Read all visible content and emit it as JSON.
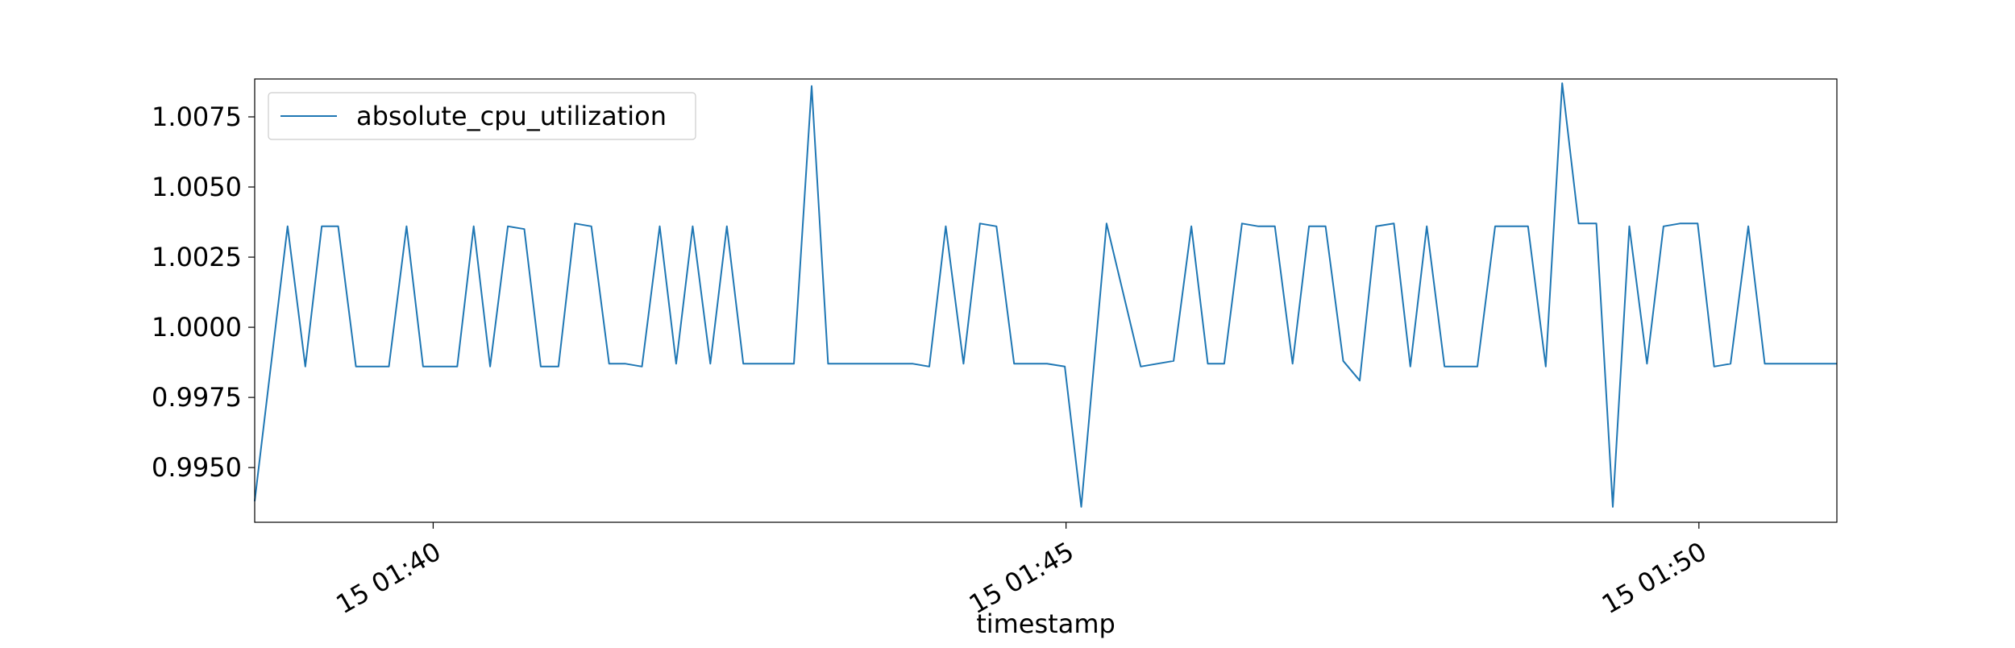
{
  "chart_data": {
    "type": "line",
    "title": "",
    "xlabel": "timestamp",
    "ylabel": "",
    "x_unit": "minutes after 15 01:37",
    "xlim": [
      1.42,
      13.92
    ],
    "ylim": [
      0.99305,
      1.00885
    ],
    "x_ticks": [
      {
        "x": 2.83,
        "label": "15 01:40"
      },
      {
        "x": 7.83,
        "label": "15 01:45"
      },
      {
        "x": 12.83,
        "label": "15 01:50"
      }
    ],
    "y_ticks": [
      {
        "y": 0.995,
        "label": "0.9950"
      },
      {
        "y": 0.9975,
        "label": "0.9975"
      },
      {
        "y": 1.0,
        "label": "1.0000"
      },
      {
        "y": 1.0025,
        "label": "1.0025"
      },
      {
        "y": 1.005,
        "label": "1.0050"
      },
      {
        "y": 1.0075,
        "label": "1.0075"
      }
    ],
    "legend_position": "upper-left",
    "grid": false,
    "series": [
      {
        "name": "absolute_cpu_utilization",
        "color": "#1f77b4",
        "x": [
          1.42,
          1.68,
          1.82,
          1.95,
          2.08,
          2.22,
          2.35,
          2.48,
          2.62,
          2.75,
          2.88,
          3.02,
          3.15,
          3.28,
          3.42,
          3.55,
          3.68,
          3.82,
          3.95,
          4.08,
          4.22,
          4.35,
          4.48,
          4.62,
          4.75,
          4.88,
          5.02,
          5.15,
          5.28,
          5.42,
          5.55,
          5.68,
          5.82,
          5.95,
          6.08,
          6.22,
          6.35,
          6.48,
          6.62,
          6.75,
          6.88,
          7.02,
          7.15,
          7.28,
          7.42,
          7.55,
          7.68,
          7.82,
          7.95,
          8.15,
          8.42,
          8.55,
          8.68,
          8.82,
          8.95,
          9.08,
          9.22,
          9.35,
          9.48,
          9.62,
          9.75,
          9.88,
          10.02,
          10.15,
          10.28,
          10.42,
          10.55,
          10.68,
          10.82,
          10.95,
          11.08,
          11.22,
          11.35,
          11.48,
          11.62,
          11.75,
          11.88,
          12.02,
          12.15,
          12.28,
          12.42,
          12.55,
          12.68,
          12.82,
          12.95,
          13.08,
          13.22,
          13.35,
          13.48,
          13.62,
          13.75,
          13.92
        ],
        "y": [
          0.9938,
          1.0036,
          0.9986,
          1.0036,
          1.0036,
          0.9986,
          0.9986,
          0.9986,
          1.0036,
          0.9986,
          0.9986,
          0.9986,
          1.0036,
          0.9986,
          1.0036,
          1.0035,
          0.9986,
          0.9986,
          1.0037,
          1.0036,
          0.9987,
          0.9987,
          0.9986,
          1.0036,
          0.9987,
          1.0036,
          0.9987,
          1.0036,
          0.9987,
          0.9987,
          0.9987,
          0.9987,
          1.0086,
          0.9987,
          0.9987,
          0.9987,
          0.9987,
          0.9987,
          0.9987,
          0.9986,
          1.0036,
          0.9987,
          1.0037,
          1.0036,
          0.9987,
          0.9987,
          0.9987,
          0.9986,
          0.9936,
          1.0037,
          0.9986,
          0.9987,
          0.9988,
          1.0036,
          0.9987,
          0.9987,
          1.0037,
          1.0036,
          1.0036,
          0.9987,
          1.0036,
          1.0036,
          0.9988,
          0.9981,
          1.0036,
          1.0037,
          0.9986,
          1.0036,
          0.9986,
          0.9986,
          0.9986,
          1.0036,
          1.0036,
          1.0036,
          0.9986,
          1.0087,
          1.0037,
          1.0037,
          0.9936,
          1.0036,
          0.9987,
          1.0036,
          1.0037,
          1.0037,
          0.9986,
          0.9987,
          1.0036,
          0.9987,
          0.9987,
          0.9987,
          0.9987,
          0.9987
        ]
      }
    ]
  }
}
